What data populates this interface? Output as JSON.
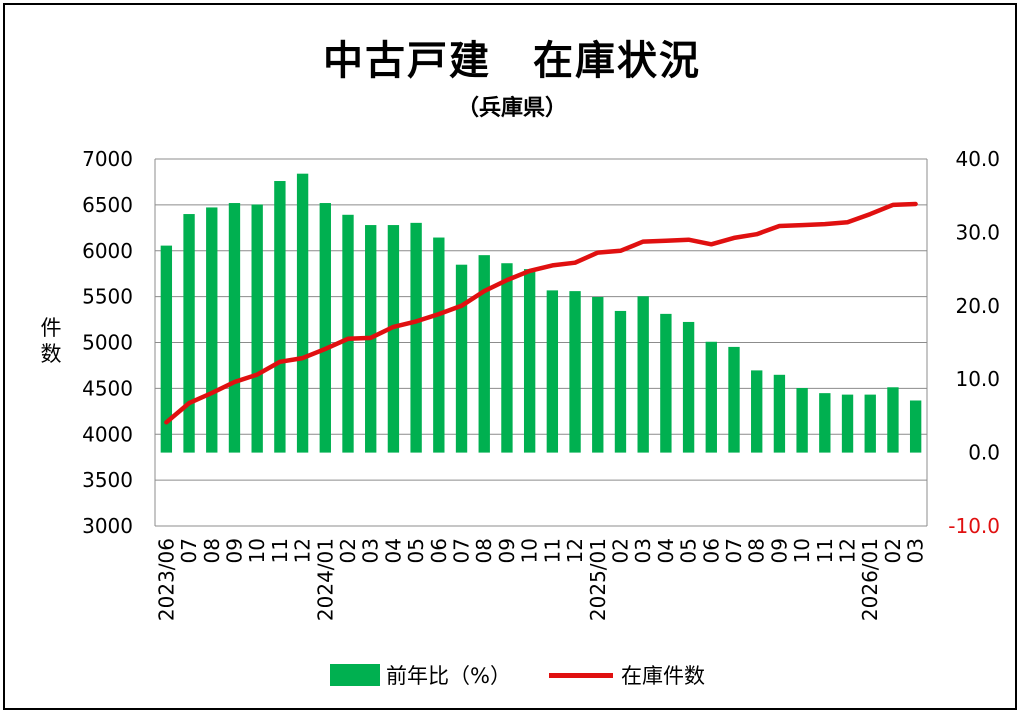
{
  "chart_data": {
    "type": "bar+line",
    "title": "中古戸建　在庫状況",
    "subtitle": "（兵庫県）",
    "ylabel_left": [
      "件",
      "数"
    ],
    "categories": [
      "2023/06",
      "07",
      "08",
      "09",
      "10",
      "11",
      "12",
      "2024/01",
      "02",
      "03",
      "04",
      "05",
      "06",
      "07",
      "08",
      "09",
      "10",
      "11",
      "12",
      "2025/01",
      "02",
      "03",
      "04",
      "05",
      "06",
      "07",
      "08",
      "09",
      "10",
      "11",
      "12",
      "2026/01",
      "02",
      "03"
    ],
    "left_axis": {
      "min": 3000,
      "max": 7000,
      "ticks": [
        "3000",
        "3500",
        "4000",
        "4500",
        "5000",
        "5500",
        "6000",
        "6500",
        "7000"
      ]
    },
    "right_axis": {
      "min": -10.0,
      "max": 40.0,
      "ticks": [
        "-10.0",
        "0.0",
        "10.0",
        "20.0",
        "30.0",
        "40.0"
      ]
    },
    "grid": true,
    "legend_position": "bottom",
    "series": [
      {
        "name": "前年比（%）",
        "kind": "bar",
        "axis": "right",
        "color": "#00b050",
        "values": [
          28.2,
          32.5,
          33.4,
          34.0,
          33.8,
          37.0,
          38.0,
          34.0,
          32.4,
          31.0,
          31.0,
          31.3,
          29.3,
          25.6,
          26.9,
          25.8,
          25.0,
          22.1,
          22.0,
          21.2,
          19.3,
          21.3,
          18.9,
          17.8,
          15.1,
          14.4,
          11.2,
          10.6,
          8.8,
          8.1,
          7.9,
          7.9,
          8.9,
          7.1
        ]
      },
      {
        "name": "在庫件数",
        "kind": "line",
        "axis": "left",
        "color": "#e01010",
        "values": [
          4130,
          4340,
          4450,
          4570,
          4650,
          4790,
          4830,
          4930,
          5040,
          5050,
          5170,
          5230,
          5310,
          5400,
          5560,
          5680,
          5780,
          5840,
          5870,
          5980,
          6000,
          6100,
          6110,
          6120,
          6070,
          6140,
          6180,
          6270,
          6280,
          6290,
          6310,
          6400,
          6500,
          6510
        ]
      }
    ]
  }
}
